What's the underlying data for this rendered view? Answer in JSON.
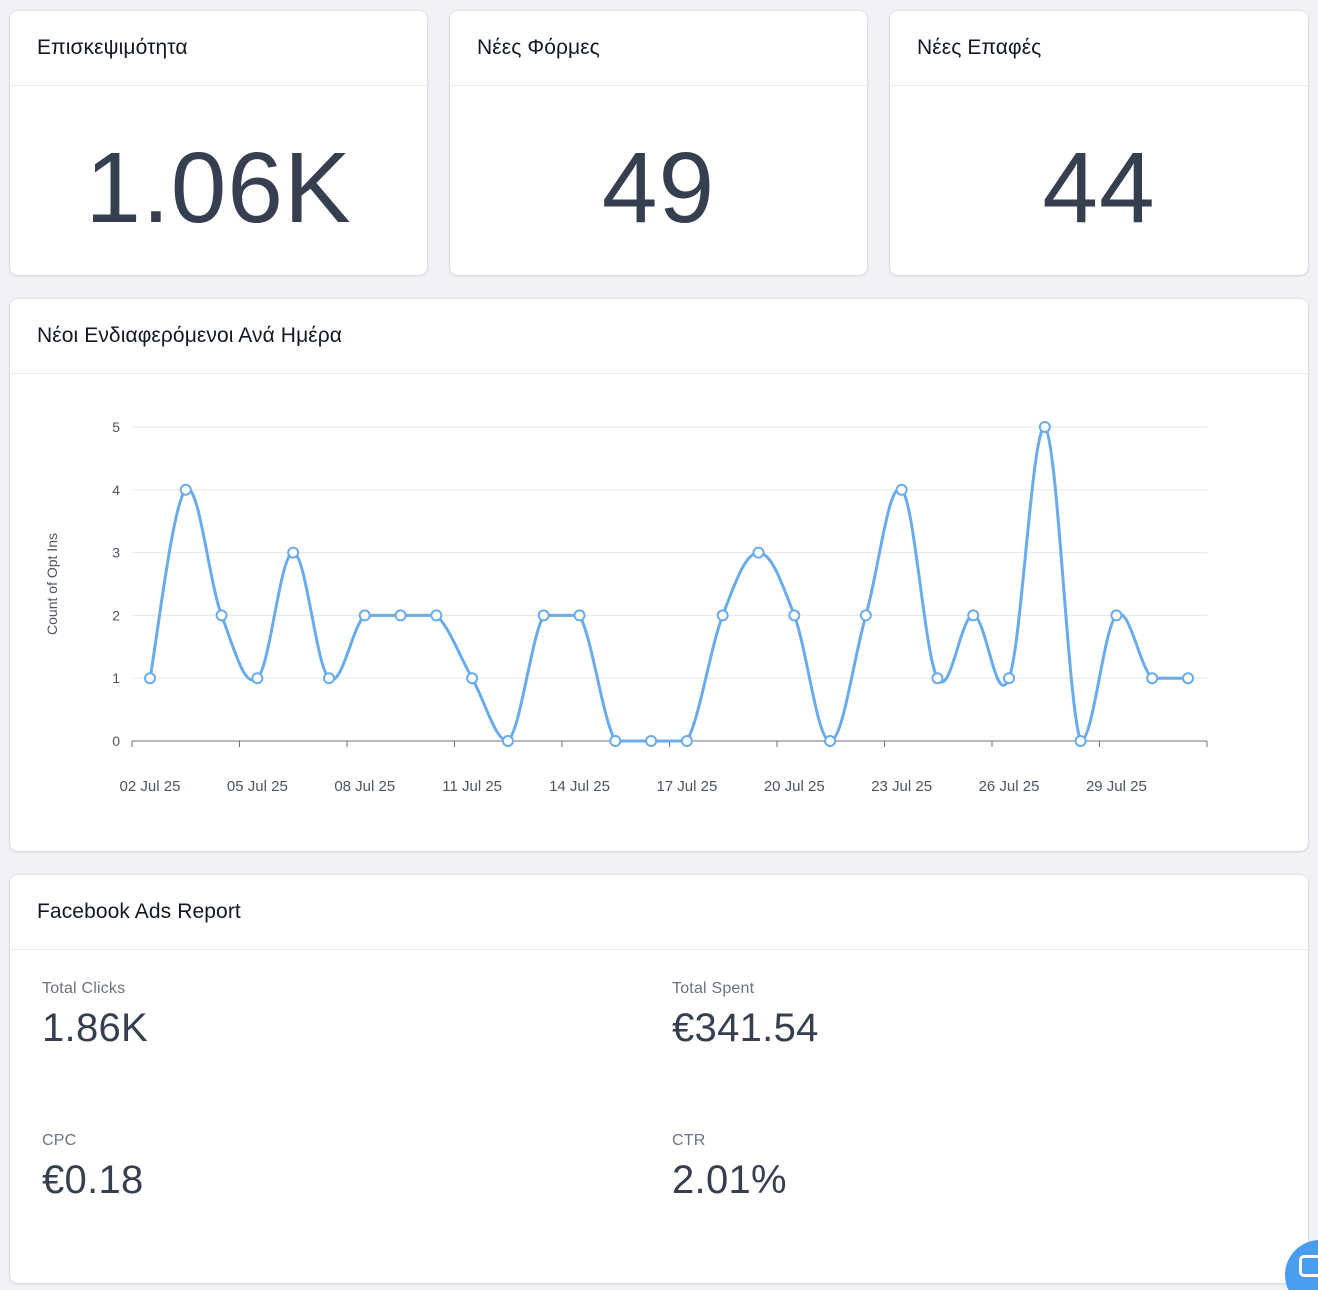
{
  "kpis": [
    {
      "title": "Επισκεψιμότητα",
      "value": "1.06K"
    },
    {
      "title": "Νέες Φόρμες",
      "value": "49"
    },
    {
      "title": "Νέες Επαφές",
      "value": "44"
    }
  ],
  "chart_card": {
    "title": "Νέοι Ενδιαφερόμενοι Ανά Ημέρα"
  },
  "chart_data": {
    "type": "line",
    "title": "Νέοι Ενδιαφερόμενοι Ανά Ημέρα",
    "xlabel": "",
    "ylabel": "Count of Opt Ins",
    "x": [
      "02 Jul 25",
      "03 Jul 25",
      "04 Jul 25",
      "05 Jul 25",
      "06 Jul 25",
      "07 Jul 25",
      "08 Jul 25",
      "09 Jul 25",
      "10 Jul 25",
      "11 Jul 25",
      "12 Jul 25",
      "13 Jul 25",
      "14 Jul 25",
      "15 Jul 25",
      "16 Jul 25",
      "17 Jul 25",
      "18 Jul 25",
      "19 Jul 25",
      "20 Jul 25",
      "21 Jul 25",
      "22 Jul 25",
      "23 Jul 25",
      "24 Jul 25",
      "25 Jul 25",
      "26 Jul 25",
      "27 Jul 25",
      "28 Jul 25",
      "29 Jul 25",
      "30 Jul 25",
      "31 Jul 25"
    ],
    "values": [
      1,
      4,
      2,
      1,
      3,
      1,
      2,
      2,
      2,
      1,
      0,
      2,
      2,
      0,
      0,
      0,
      2,
      3,
      2,
      0,
      2,
      4,
      1,
      2,
      1,
      5,
      0,
      2,
      1,
      1
    ],
    "x_tick_labels": [
      "02 Jul 25",
      "05 Jul 25",
      "08 Jul 25",
      "11 Jul 25",
      "14 Jul 25",
      "17 Jul 25",
      "20 Jul 25",
      "23 Jul 25",
      "26 Jul 25",
      "29 Jul 25"
    ],
    "y_ticks": [
      "0",
      "1",
      "2",
      "3",
      "4",
      "5"
    ],
    "ylim": [
      0,
      5
    ],
    "grid": true,
    "color": "#6aabec"
  },
  "fb_report": {
    "title": "Facebook Ads Report",
    "metrics": [
      {
        "label": "Total Clicks",
        "value": "1.86K"
      },
      {
        "label": "Total Spent",
        "value": "€341.54"
      },
      {
        "label": "CPC",
        "value": "€0.18"
      },
      {
        "label": "CTR",
        "value": "2.01%"
      }
    ]
  },
  "chat_widget": {
    "icon": "chat-icon"
  }
}
